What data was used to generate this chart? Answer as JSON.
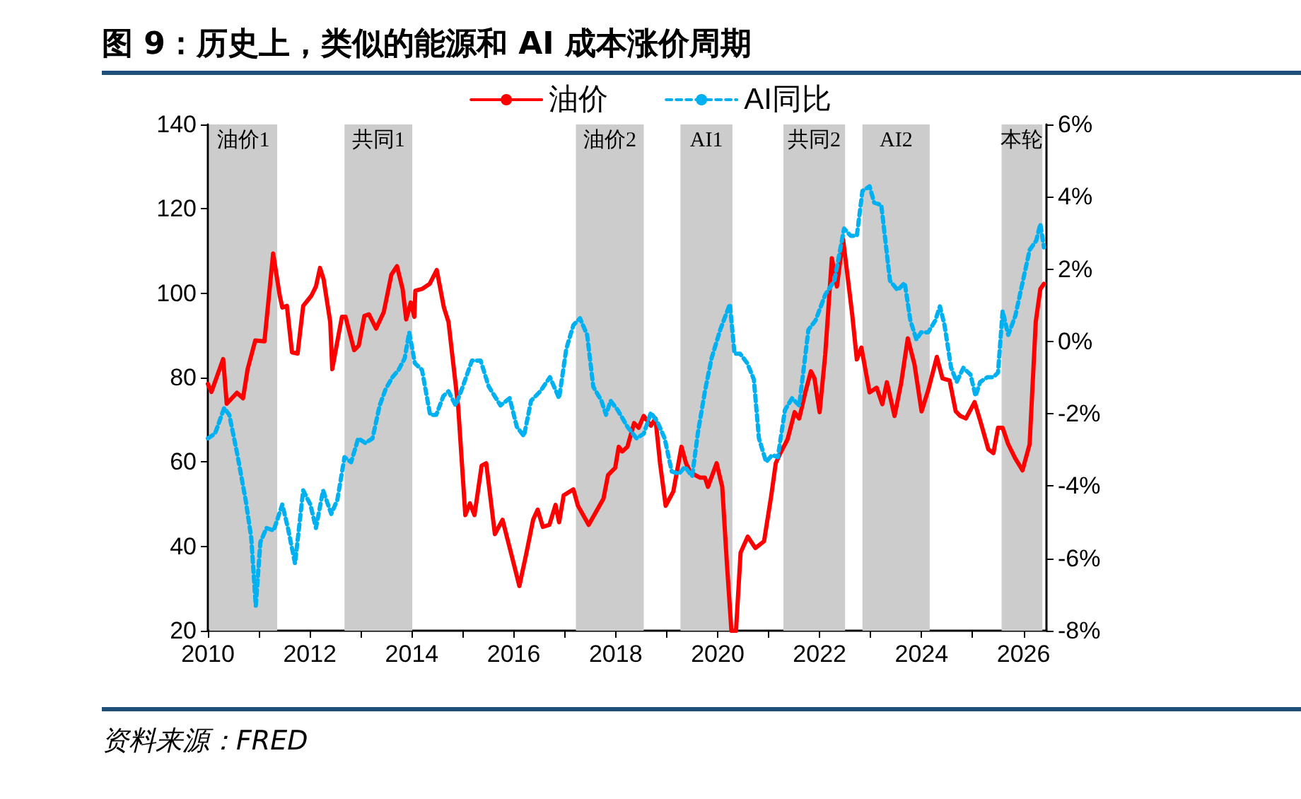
{
  "chart_data": {
    "type": "line",
    "title": "图 9：历史上，类似的能源和 AI 成本涨价周期",
    "annotations": [
      "资料来源：FRED"
    ],
    "xlim": [
      2010,
      2026.45
    ],
    "xticks": [
      2010,
      {
        "value": 2011,
        "label": null
      },
      2012,
      {
        "value": 2013,
        "label": null
      },
      2014,
      {
        "value": 2015,
        "label": null
      },
      2016,
      {
        "value": 2017,
        "label": null
      },
      2018,
      {
        "value": 2019,
        "label": null
      },
      2020,
      {
        "value": 2021,
        "label": null
      },
      2022,
      {
        "value": 2023,
        "label": null
      },
      2024,
      {
        "value": 2025,
        "label": null
      },
      2026
    ],
    "ylim": [
      20,
      140
    ],
    "yticks": [
      20,
      40,
      60,
      80,
      100,
      120,
      140
    ],
    "y2lim": [
      -8,
      6
    ],
    "y2ticks": [
      {
        "value": -8,
        "label": "-8%"
      },
      {
        "value": -6,
        "label": "-6%"
      },
      {
        "value": -4,
        "label": "-4%"
      },
      {
        "value": -2,
        "label": "-2%"
      },
      {
        "value": 0,
        "label": "0%"
      },
      {
        "value": 2,
        "label": "2%"
      },
      {
        "value": 4,
        "label": "4%"
      },
      {
        "value": 6,
        "label": "6%"
      }
    ],
    "grid": false,
    "legend": "top",
    "marker": "none",
    "bands": [
      {
        "axis": "x",
        "from": 2010.03,
        "to": 2011.36,
        "label": "油价1",
        "color": "#cccccc"
      },
      {
        "axis": "x",
        "from": 2012.68,
        "to": 2014.01,
        "label": "共同1",
        "color": "#cccccc"
      },
      {
        "axis": "x",
        "from": 2017.22,
        "to": 2018.55,
        "label": "油价2",
        "color": "#cccccc"
      },
      {
        "axis": "x",
        "from": 2019.27,
        "to": 2020.29,
        "label": "AI1",
        "color": "#cccccc"
      },
      {
        "axis": "x",
        "from": 2021.29,
        "to": 2022.5,
        "label": "共同2",
        "color": "#cccccc"
      },
      {
        "axis": "x",
        "from": 2022.84,
        "to": 2024.16,
        "label": "AI2",
        "color": "#cccccc"
      },
      {
        "axis": "x",
        "from": 2025.57,
        "to": 2026.37,
        "label": "本轮",
        "color": "#cccccc"
      }
    ],
    "series": [
      {
        "name": "油价",
        "color": "#ff0000",
        "line_style": "solid",
        "x": [
          2010.0,
          2010.07,
          2010.3,
          2010.37,
          2010.57,
          2010.69,
          2010.78,
          2010.93,
          2011.11,
          2011.28,
          2011.41,
          2011.46,
          2011.55,
          2011.65,
          2011.76,
          2011.87,
          2012.03,
          2012.12,
          2012.2,
          2012.27,
          2012.4,
          2012.44,
          2012.56,
          2012.63,
          2012.7,
          2012.87,
          2012.96,
          2013.07,
          2013.16,
          2013.3,
          2013.45,
          2013.6,
          2013.71,
          2013.82,
          2013.89,
          2013.98,
          2014.05,
          2014.07,
          2014.2,
          2014.35,
          2014.49,
          2014.63,
          2014.72,
          2014.91,
          2015.05,
          2015.14,
          2015.23,
          2015.37,
          2015.46,
          2015.63,
          2015.78,
          2015.97,
          2016.11,
          2016.24,
          2016.38,
          2016.47,
          2016.57,
          2016.7,
          2016.82,
          2016.89,
          2016.98,
          2017.17,
          2017.26,
          2017.47,
          2017.76,
          2017.85,
          2017.99,
          2018.06,
          2018.13,
          2018.23,
          2018.36,
          2018.45,
          2018.55,
          2018.69,
          2018.78,
          2018.87,
          2018.98,
          2019.13,
          2019.29,
          2019.38,
          2019.47,
          2019.56,
          2019.65,
          2019.75,
          2019.81,
          2019.98,
          2020.09,
          2020.18,
          2020.27,
          2020.36,
          2020.45,
          2020.59,
          2020.74,
          2020.91,
          2021.05,
          2021.14,
          2021.23,
          2021.37,
          2021.51,
          2021.6,
          2021.72,
          2021.83,
          2021.9,
          2022.0,
          2022.11,
          2022.24,
          2022.34,
          2022.46,
          2022.55,
          2022.64,
          2022.73,
          2022.82,
          2022.98,
          2023.12,
          2023.23,
          2023.32,
          2023.47,
          2023.6,
          2023.73,
          2023.86,
          2024.0,
          2024.13,
          2024.3,
          2024.41,
          2024.55,
          2024.67,
          2024.76,
          2024.87,
          2025.04,
          2025.15,
          2025.31,
          2025.41,
          2025.5,
          2025.59,
          2025.7,
          2025.84,
          2025.98,
          2026.12,
          2026.24,
          2026.33,
          2026.4
        ],
        "values": [
          78.5,
          76.6,
          84.4,
          73.8,
          76.4,
          75.1,
          82,
          88.8,
          88.6,
          109.4,
          99.4,
          96.6,
          97,
          86,
          85.7,
          97,
          99.4,
          101.6,
          106,
          103.3,
          93.2,
          82,
          89.9,
          94.4,
          94.4,
          86.5,
          87.6,
          94.6,
          95,
          91.6,
          95.5,
          104.4,
          106.4,
          101,
          93.8,
          97.8,
          94.4,
          100.6,
          101,
          102.2,
          105.5,
          96.6,
          93.2,
          73.1,
          47.4,
          50.2,
          47.4,
          59.1,
          59.7,
          42.9,
          46.3,
          37.3,
          30.6,
          37.9,
          46.3,
          48.7,
          44.6,
          45.1,
          49.8,
          45.7,
          52.1,
          53.5,
          49.6,
          45.1,
          51.3,
          56.9,
          58.6,
          63.6,
          62.5,
          63.6,
          69.2,
          68.1,
          70.9,
          68.6,
          70.3,
          59.7,
          49.6,
          53,
          63.6,
          59.7,
          57.4,
          56.9,
          56.3,
          56.3,
          54.1,
          59.7,
          54.1,
          36.2,
          20,
          20,
          38.5,
          42.3,
          39.6,
          41.2,
          51.9,
          59.7,
          62.1,
          65.3,
          71.8,
          70.3,
          76.5,
          81.5,
          79.8,
          71.8,
          85.4,
          108.3,
          101.6,
          112.8,
          103.9,
          94.9,
          84.3,
          87.1,
          76.5,
          77.6,
          73.7,
          78.9,
          70.9,
          78.7,
          89.3,
          83.2,
          72,
          77,
          84.9,
          79.8,
          79.3,
          72,
          70.9,
          70.3,
          74.2,
          69.8,
          63,
          62.1,
          68.1,
          68.1,
          64.2,
          60.8,
          58,
          64.2,
          93.2,
          101,
          102.2
        ]
      },
      {
        "name": "AI同比",
        "color": "#00b0f0",
        "line_style": "dashed",
        "axis": "y2",
        "x": [
          2010.0,
          2010.14,
          2010.32,
          2010.42,
          2010.57,
          2010.74,
          2010.85,
          2010.94,
          2011.03,
          2011.15,
          2011.29,
          2011.46,
          2011.57,
          2011.71,
          2011.87,
          2012.01,
          2012.12,
          2012.26,
          2012.42,
          2012.54,
          2012.68,
          2012.81,
          2012.95,
          2013.09,
          2013.23,
          2013.37,
          2013.49,
          2013.62,
          2013.74,
          2013.86,
          2013.95,
          2014.06,
          2014.2,
          2014.36,
          2014.48,
          2014.62,
          2014.72,
          2014.86,
          2015.0,
          2015.18,
          2015.35,
          2015.51,
          2015.74,
          2015.92,
          2016.06,
          2016.2,
          2016.34,
          2016.52,
          2016.71,
          2016.89,
          2017.03,
          2017.17,
          2017.3,
          2017.44,
          2017.56,
          2017.72,
          2017.81,
          2017.9,
          2018.04,
          2018.23,
          2018.41,
          2018.55,
          2018.69,
          2018.82,
          2018.96,
          2019.1,
          2019.24,
          2019.36,
          2019.5,
          2019.61,
          2019.75,
          2019.88,
          2020.05,
          2020.24,
          2020.33,
          2020.44,
          2020.58,
          2020.71,
          2020.81,
          2020.95,
          2021.07,
          2021.18,
          2021.32,
          2021.46,
          2021.6,
          2021.78,
          2021.92,
          2022.11,
          2022.29,
          2022.48,
          2022.61,
          2022.73,
          2022.84,
          2022.98,
          2023.07,
          2023.21,
          2023.38,
          2023.53,
          2023.67,
          2023.78,
          2023.9,
          2023.99,
          2024.13,
          2024.27,
          2024.36,
          2024.45,
          2024.58,
          2024.69,
          2024.82,
          2024.96,
          2025.06,
          2025.15,
          2025.29,
          2025.41,
          2025.5,
          2025.59,
          2025.7,
          2025.84,
          2025.98,
          2026.12,
          2026.25,
          2026.33,
          2026.4
        ],
        "values": [
          -2.68,
          -2.55,
          -1.84,
          -2.03,
          -3.07,
          -4.38,
          -5.42,
          -7.31,
          -5.55,
          -5.16,
          -5.23,
          -4.51,
          -5.16,
          -6.14,
          -4.12,
          -4.51,
          -5.16,
          -4.12,
          -4.77,
          -4.38,
          -3.2,
          -3.34,
          -2.68,
          -2.81,
          -2.68,
          -1.77,
          -1.31,
          -0.99,
          -0.79,
          -0.47,
          0.25,
          -0.6,
          -0.79,
          -2.03,
          -2.03,
          -1.51,
          -1.38,
          -1.77,
          -1.25,
          -0.53,
          -0.53,
          -1.25,
          -1.77,
          -1.57,
          -2.36,
          -2.62,
          -1.64,
          -1.38,
          -0.99,
          -1.57,
          -0.21,
          0.45,
          0.64,
          0.18,
          -1.25,
          -1.64,
          -2.03,
          -1.64,
          -1.9,
          -2.36,
          -2.68,
          -2.55,
          -1.97,
          -2.23,
          -2.68,
          -3.6,
          -3.66,
          -3.47,
          -3.73,
          -2.55,
          -1.38,
          -0.47,
          0.32,
          1.03,
          -0.34,
          -0.34,
          -0.6,
          -1.05,
          -2.68,
          -3.33,
          -3.14,
          -3.2,
          -1.9,
          -1.57,
          -1.77,
          0.32,
          0.58,
          1.29,
          1.68,
          3.12,
          2.92,
          2.92,
          4.16,
          4.29,
          3.84,
          3.77,
          1.68,
          1.42,
          1.62,
          0.58,
          0.05,
          0.25,
          0.25,
          0.58,
          0.97,
          0.45,
          -0.73,
          -1.12,
          -0.73,
          -0.92,
          -1.51,
          -1.12,
          -0.99,
          -0.99,
          -0.86,
          0.84,
          0.18,
          0.71,
          1.62,
          2.53,
          2.79,
          3.25,
          2.6
        ]
      }
    ]
  }
}
